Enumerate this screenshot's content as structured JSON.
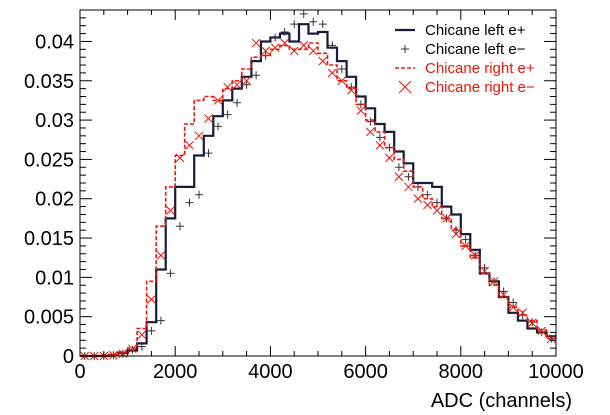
{
  "chart_data": {
    "type": "line",
    "title": "",
    "xlabel": "ADC (channels)",
    "ylabel": "",
    "xlim": [
      0,
      10000
    ],
    "ylim": [
      0,
      0.044
    ],
    "grid": false,
    "legend_position": "top-right",
    "x_ticks": [
      0,
      2000,
      4000,
      6000,
      8000,
      10000
    ],
    "x_tick_labels": [
      "0",
      "2000",
      "4000",
      "6000",
      "8000",
      "10000"
    ],
    "y_ticks": [
      0,
      0.005,
      0.01,
      0.015,
      0.02,
      0.025,
      0.03,
      0.035,
      0.04
    ],
    "y_tick_labels": [
      "0",
      "0.005",
      "0.01",
      "0.015",
      "0.02",
      "0.025",
      "0.03",
      "0.035",
      "0.04"
    ],
    "x": [
      100,
      300,
      500,
      700,
      900,
      1100,
      1300,
      1500,
      1700,
      1900,
      2100,
      2300,
      2500,
      2700,
      2900,
      3100,
      3300,
      3500,
      3700,
      3900,
      4100,
      4300,
      4500,
      4700,
      4900,
      5100,
      5300,
      5500,
      5700,
      5900,
      6100,
      6300,
      6500,
      6700,
      6900,
      7100,
      7300,
      7500,
      7700,
      7900,
      8100,
      8300,
      8500,
      8700,
      8900,
      9100,
      9300,
      9500,
      9700,
      9900
    ],
    "series": [
      {
        "name": "Chicane left e+",
        "style": "step-solid",
        "color": "#1a1a3a",
        "values": [
          0,
          0,
          0,
          0.0001,
          0.0004,
          0.0007,
          0.0016,
          0.0043,
          0.011,
          0.0175,
          0.0215,
          0.0215,
          0.0255,
          0.028,
          0.0305,
          0.0325,
          0.034,
          0.0355,
          0.0375,
          0.04,
          0.0405,
          0.041,
          0.04,
          0.0422,
          0.041,
          0.0412,
          0.0392,
          0.0375,
          0.0355,
          0.033,
          0.0315,
          0.0295,
          0.0285,
          0.026,
          0.0245,
          0.022,
          0.022,
          0.0215,
          0.019,
          0.018,
          0.0155,
          0.0135,
          0.0105,
          0.0095,
          0.0075,
          0.0055,
          0.0045,
          0.0035,
          0.003,
          0.0025
        ]
      },
      {
        "name": "Chicane left e−",
        "style": "plus-markers",
        "color": "#333333",
        "values": [
          0,
          0,
          0,
          0.0001,
          0.0003,
          0.0008,
          0.0012,
          0.0032,
          0.0045,
          0.0105,
          0.0165,
          0.0195,
          0.0205,
          0.0258,
          0.0292,
          0.0307,
          0.0322,
          0.0345,
          0.0357,
          0.0382,
          0.0405,
          0.0412,
          0.0422,
          0.0435,
          0.0425,
          0.0422,
          0.0395,
          0.0365,
          0.0342,
          0.032,
          0.0298,
          0.0278,
          0.0265,
          0.024,
          0.0228,
          0.0215,
          0.0205,
          0.0195,
          0.0175,
          0.016,
          0.0148,
          0.0128,
          0.0112,
          0.0095,
          0.0082,
          0.0068,
          0.0052,
          0.0043,
          0.003,
          0.0022
        ]
      },
      {
        "name": "Chicane right e+",
        "style": "step-dashed",
        "color": "#e8180c",
        "values": [
          0,
          0,
          0,
          0.0002,
          0.0005,
          0.001,
          0.0035,
          0.0095,
          0.0165,
          0.0215,
          0.0255,
          0.0295,
          0.0325,
          0.033,
          0.0325,
          0.034,
          0.035,
          0.0365,
          0.038,
          0.0382,
          0.039,
          0.0395,
          0.039,
          0.039,
          0.0398,
          0.0385,
          0.037,
          0.035,
          0.034,
          0.032,
          0.03,
          0.0285,
          0.0265,
          0.025,
          0.0235,
          0.0215,
          0.02,
          0.019,
          0.0175,
          0.0162,
          0.014,
          0.0125,
          0.0105,
          0.009,
          0.0075,
          0.0062,
          0.0052,
          0.0045,
          0.0033,
          0.0022
        ]
      },
      {
        "name": "Chicane right e−",
        "style": "x-markers",
        "color": "#e8180c",
        "values": [
          0,
          0,
          0,
          0.0001,
          0.0003,
          0.0009,
          0.0027,
          0.0072,
          0.0128,
          0.0185,
          0.0252,
          0.0268,
          0.028,
          0.0302,
          0.0325,
          0.0342,
          0.0345,
          0.035,
          0.0398,
          0.0388,
          0.0392,
          0.0398,
          0.0388,
          0.0395,
          0.0388,
          0.0375,
          0.036,
          0.035,
          0.0338,
          0.0312,
          0.0285,
          0.0268,
          0.0252,
          0.0228,
          0.0215,
          0.02,
          0.0192,
          0.0185,
          0.0175,
          0.0155,
          0.014,
          0.0128,
          0.0108,
          0.0095,
          0.0078,
          0.0062,
          0.0055,
          0.0042,
          0.0032,
          0.0022
        ]
      }
    ]
  }
}
